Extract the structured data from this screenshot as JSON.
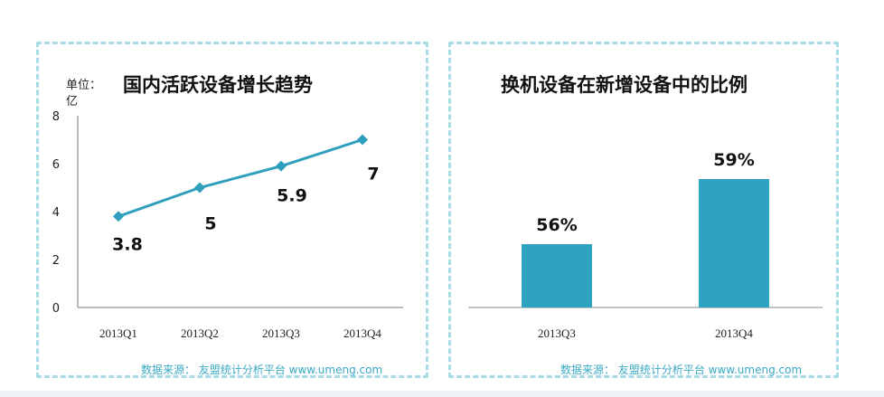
{
  "charts": {
    "left": {
      "title": "国内活跃设备增长趋势",
      "unit_line1": "单位：",
      "unit_line2": "亿",
      "source": "数据来源： 友盟统计分析平台 www.umeng.com"
    },
    "right": {
      "title": "换机设备在新增设备中的比例",
      "source": "数据来源： 友盟统计分析平台 www.umeng.com"
    }
  },
  "colors": {
    "line": "#2f9fbd",
    "bar": "#2ea3c1",
    "border": "#a7dbe6",
    "source": "#3aa9c4"
  },
  "chart_data": [
    {
      "type": "line",
      "title": "国内活跃设备增长趋势",
      "ylabel": "单位：亿",
      "categories": [
        "2013Q1",
        "2013Q2",
        "2013Q3",
        "2013Q4"
      ],
      "values": [
        3.8,
        5,
        5.9,
        7
      ],
      "labels": [
        "3.8",
        "5",
        "5.9",
        "7"
      ],
      "yticks": [
        "0",
        "2",
        "4",
        "6",
        "8"
      ],
      "ylim": [
        0,
        8
      ],
      "grid": false,
      "marker": "diamond"
    },
    {
      "type": "bar",
      "title": "换机设备在新增设备中的比例",
      "categories": [
        "2013Q3",
        "2013Q4"
      ],
      "values": [
        56,
        59
      ],
      "labels": [
        "56%",
        "59%"
      ],
      "ylim": [
        50,
        60
      ],
      "grid": false
    }
  ]
}
